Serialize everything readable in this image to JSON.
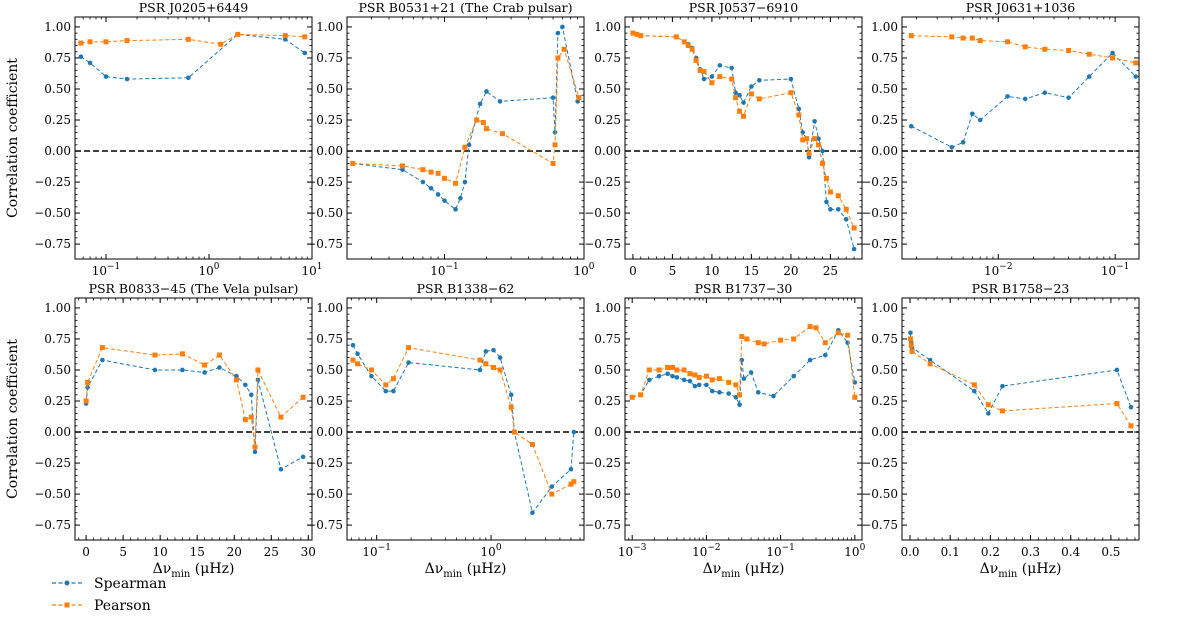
{
  "figure": {
    "legend": {
      "location": "bottom-left",
      "entries": [
        {
          "label": "Spearman",
          "color": "#1f77b4",
          "marker": "circle"
        },
        {
          "label": "Pearson",
          "color": "#ff7f0e",
          "marker": "square"
        }
      ]
    },
    "ylabel": "Correlation coefficient",
    "xlabel": "Δν_min (μHz)",
    "xlabel_main": "Δν",
    "xlabel_sub": "min",
    "xlabel_unit": " (μHz)",
    "zero_line": {
      "y": 0,
      "style": "dashed",
      "color": "#000000"
    }
  },
  "chart_data": [
    {
      "type": "line",
      "title": "PSR J0205+6449",
      "xscale": "log",
      "xlim": [
        0.05,
        10
      ],
      "ylim": [
        -0.87,
        1.08
      ],
      "xticks": [
        0.1,
        1,
        10
      ],
      "xtick_labels": [
        "10^-1",
        "10^0",
        "10^1"
      ],
      "yticks": [
        -0.75,
        -0.5,
        -0.25,
        0,
        0.25,
        0.5,
        0.75,
        1
      ],
      "ytick_labels": [
        "−0.75",
        "−0.50",
        "−0.25",
        "0.00",
        "0.25",
        "0.50",
        "0.75",
        "1.00"
      ],
      "show_ylabel": true,
      "show_xlabel": false,
      "series": [
        {
          "name": "Spearman",
          "x": [
            0.057,
            0.07,
            0.1,
            0.16,
            0.63,
            1.9,
            5.5,
            8.5
          ],
          "y": [
            0.76,
            0.71,
            0.6,
            0.58,
            0.59,
            0.94,
            0.9,
            0.79
          ]
        },
        {
          "name": "Pearson",
          "x": [
            0.057,
            0.07,
            0.1,
            0.16,
            0.63,
            1.3,
            1.9,
            5.5,
            8.5
          ],
          "y": [
            0.87,
            0.88,
            0.88,
            0.89,
            0.9,
            0.86,
            0.94,
            0.93,
            0.92
          ]
        }
      ]
    },
    {
      "type": "line",
      "title": "PSR B0531+21 (The Crab pulsar)",
      "xscale": "log",
      "xlim": [
        0.02,
        1.0
      ],
      "ylim": [
        -0.87,
        1.08
      ],
      "xticks": [
        0.1,
        1
      ],
      "xtick_labels": [
        "10^-1",
        "10^0"
      ],
      "yticks": [
        -0.75,
        -0.5,
        -0.25,
        0,
        0.25,
        0.5,
        0.75,
        1
      ],
      "ytick_labels": [
        "−0.75",
        "−0.50",
        "−0.25",
        "0.00",
        "0.25",
        "0.50",
        "0.75",
        "1.00"
      ],
      "show_ylabel": false,
      "show_xlabel": false,
      "series": [
        {
          "name": "Spearman",
          "x": [
            0.022,
            0.05,
            0.07,
            0.08,
            0.09,
            0.1,
            0.12,
            0.13,
            0.14,
            0.15,
            0.18,
            0.2,
            0.25,
            0.6,
            0.62,
            0.65,
            0.7,
            0.9
          ],
          "y": [
            -0.1,
            -0.15,
            -0.25,
            -0.3,
            -0.35,
            -0.4,
            -0.47,
            -0.38,
            -0.25,
            0.05,
            0.38,
            0.48,
            0.4,
            0.43,
            0.15,
            0.95,
            1.0,
            0.4
          ]
        },
        {
          "name": "Pearson",
          "x": [
            0.022,
            0.05,
            0.07,
            0.08,
            0.09,
            0.1,
            0.12,
            0.14,
            0.17,
            0.19,
            0.2,
            0.26,
            0.6,
            0.62,
            0.65,
            0.72,
            0.92
          ],
          "y": [
            -0.1,
            -0.12,
            -0.15,
            -0.17,
            -0.18,
            -0.22,
            -0.26,
            0.03,
            0.25,
            0.23,
            0.18,
            0.14,
            -0.1,
            0.05,
            0.75,
            0.82,
            0.43
          ]
        }
      ]
    },
    {
      "type": "line",
      "title": "PSR J0537−6910",
      "xscale": "linear",
      "xlim": [
        -1,
        29
      ],
      "ylim": [
        -0.87,
        1.08
      ],
      "xticks": [
        0,
        5,
        10,
        15,
        20,
        25
      ],
      "xtick_labels": [
        "0",
        "5",
        "10",
        "15",
        "20",
        "25"
      ],
      "yticks": [
        -0.75,
        -0.5,
        -0.25,
        0,
        0.25,
        0.5,
        0.75,
        1
      ],
      "ytick_labels": [
        "−0.75",
        "−0.50",
        "−0.25",
        "0.00",
        "0.25",
        "0.50",
        "0.75",
        "1.00"
      ],
      "show_ylabel": false,
      "show_xlabel": false,
      "series": [
        {
          "name": "Spearman",
          "x": [
            0,
            0.5,
            1,
            5.5,
            6.5,
            7,
            7.5,
            8,
            8.5,
            9,
            10,
            11,
            12.5,
            13,
            13.5,
            14,
            15,
            16,
            20,
            21,
            21.5,
            22,
            22.3,
            23,
            23.5,
            24,
            24.5,
            25,
            26,
            27,
            28
          ],
          "y": [
            0.95,
            0.94,
            0.93,
            0.92,
            0.88,
            0.86,
            0.83,
            0.75,
            0.66,
            0.58,
            0.6,
            0.69,
            0.67,
            0.47,
            0.45,
            0.39,
            0.52,
            0.57,
            0.58,
            0.34,
            0.15,
            0.1,
            -0.05,
            0.24,
            0.1,
            0.0,
            -0.41,
            -0.47,
            -0.47,
            -0.55,
            -0.79
          ]
        },
        {
          "name": "Pearson",
          "x": [
            0,
            0.5,
            1,
            5.5,
            6.5,
            7,
            7.5,
            8,
            8.5,
            9,
            10,
            11,
            12.5,
            13,
            13.5,
            14,
            15,
            16,
            20,
            21,
            21.5,
            22,
            22.3,
            23,
            23.5,
            24,
            24.5,
            25,
            26,
            27,
            28
          ],
          "y": [
            0.95,
            0.94,
            0.93,
            0.92,
            0.88,
            0.85,
            0.82,
            0.73,
            0.65,
            0.64,
            0.55,
            0.6,
            0.58,
            0.43,
            0.32,
            0.28,
            0.46,
            0.42,
            0.47,
            0.29,
            0.09,
            0.1,
            -0.02,
            0.1,
            0.05,
            -0.1,
            -0.22,
            -0.33,
            -0.36,
            -0.47,
            -0.62
          ]
        }
      ]
    },
    {
      "type": "line",
      "title": "PSR J0631+1036",
      "xscale": "log",
      "xlim": [
        0.0015,
        0.16
      ],
      "ylim": [
        -0.87,
        1.08
      ],
      "xticks": [
        0.01,
        0.1
      ],
      "xtick_labels": [
        "10^-2",
        "10^-1"
      ],
      "yticks": [
        -0.75,
        -0.5,
        -0.25,
        0,
        0.25,
        0.5,
        0.75,
        1
      ],
      "ytick_labels": [
        "−0.75",
        "−0.50",
        "−0.25",
        "0.00",
        "0.25",
        "0.50",
        "0.75",
        "1.00"
      ],
      "show_ylabel": false,
      "show_xlabel": false,
      "series": [
        {
          "name": "Spearman",
          "x": [
            0.0018,
            0.004,
            0.005,
            0.006,
            0.007,
            0.012,
            0.017,
            0.025,
            0.04,
            0.06,
            0.095,
            0.15
          ],
          "y": [
            0.2,
            0.03,
            0.07,
            0.3,
            0.25,
            0.44,
            0.42,
            0.47,
            0.43,
            0.6,
            0.79,
            0.6
          ]
        },
        {
          "name": "Pearson",
          "x": [
            0.0018,
            0.004,
            0.005,
            0.006,
            0.007,
            0.012,
            0.017,
            0.025,
            0.04,
            0.06,
            0.095,
            0.15
          ],
          "y": [
            0.93,
            0.92,
            0.91,
            0.91,
            0.89,
            0.88,
            0.84,
            0.82,
            0.81,
            0.78,
            0.75,
            0.71
          ]
        }
      ]
    },
    {
      "type": "line",
      "title": "PSR B0833−45 (The Vela pulsar)",
      "xscale": "linear",
      "xlim": [
        -1.5,
        30.5
      ],
      "ylim": [
        -0.87,
        1.08
      ],
      "xticks": [
        0,
        5,
        10,
        15,
        20,
        25,
        30
      ],
      "xtick_labels": [
        "0",
        "5",
        "10",
        "15",
        "20",
        "25",
        "30"
      ],
      "yticks": [
        -0.75,
        -0.5,
        -0.25,
        0,
        0.25,
        0.5,
        0.75,
        1
      ],
      "ytick_labels": [
        "−0.75",
        "−0.50",
        "−0.25",
        "0.00",
        "0.25",
        "0.50",
        "0.75",
        "1.00"
      ],
      "show_ylabel": true,
      "show_xlabel": true,
      "series": [
        {
          "name": "Spearman",
          "x": [
            0,
            0.2,
            2.2,
            9.3,
            13,
            16,
            18,
            20.3,
            21.5,
            22.3,
            22.8,
            23.2,
            26.3,
            29.3
          ],
          "y": [
            0.23,
            0.36,
            0.58,
            0.5,
            0.5,
            0.48,
            0.52,
            0.45,
            0.38,
            0.3,
            -0.16,
            0.42,
            -0.3,
            -0.2
          ]
        },
        {
          "name": "Pearson",
          "x": [
            0,
            0.2,
            2.2,
            9.3,
            13,
            16,
            18,
            20.3,
            21.5,
            22.3,
            22.8,
            23.2,
            26.3,
            29.3
          ],
          "y": [
            0.25,
            0.4,
            0.68,
            0.62,
            0.63,
            0.54,
            0.62,
            0.42,
            0.1,
            0.12,
            -0.12,
            0.5,
            0.12,
            0.28
          ]
        }
      ]
    },
    {
      "type": "line",
      "title": "PSR B1338−62",
      "xscale": "log",
      "xlim": [
        0.055,
        6.5
      ],
      "ylim": [
        -0.87,
        1.08
      ],
      "xticks": [
        0.1,
        1
      ],
      "xtick_labels": [
        "10^-1",
        "10^0"
      ],
      "yticks": [
        -0.75,
        -0.5,
        -0.25,
        0,
        0.25,
        0.5,
        0.75,
        1
      ],
      "ytick_labels": [
        "−0.75",
        "−0.50",
        "−0.25",
        "0.00",
        "0.25",
        "0.50",
        "0.75",
        "1.00"
      ],
      "show_ylabel": false,
      "show_xlabel": true,
      "series": [
        {
          "name": "Spearman",
          "x": [
            0.062,
            0.068,
            0.09,
            0.12,
            0.14,
            0.19,
            0.8,
            0.9,
            1.05,
            1.2,
            1.5,
            1.6,
            2.3,
            3.4,
            5.0,
            5.3
          ],
          "y": [
            0.7,
            0.63,
            0.45,
            0.33,
            0.33,
            0.56,
            0.5,
            0.65,
            0.66,
            0.6,
            0.3,
            0.0,
            -0.65,
            -0.44,
            -0.3,
            0.0
          ]
        },
        {
          "name": "Pearson",
          "x": [
            0.062,
            0.068,
            0.09,
            0.12,
            0.14,
            0.19,
            0.8,
            0.9,
            1.05,
            1.2,
            1.5,
            1.6,
            2.3,
            3.4,
            5.0,
            5.3
          ],
          "y": [
            0.58,
            0.55,
            0.5,
            0.38,
            0.43,
            0.68,
            0.58,
            0.55,
            0.52,
            0.5,
            0.2,
            0.0,
            -0.1,
            -0.5,
            -0.42,
            -0.4
          ]
        }
      ]
    },
    {
      "type": "line",
      "title": "PSR B1737−30",
      "xscale": "log",
      "xlim": [
        0.0008,
        1.25
      ],
      "ylim": [
        -0.87,
        1.08
      ],
      "xticks": [
        0.001,
        0.01,
        0.1,
        1
      ],
      "xtick_labels": [
        "10^-3",
        "10^-2",
        "10^-1",
        "10^0"
      ],
      "yticks": [
        -0.75,
        -0.5,
        -0.25,
        0,
        0.25,
        0.5,
        0.75,
        1
      ],
      "ytick_labels": [
        "−0.75",
        "−0.50",
        "−0.25",
        "0.00",
        "0.25",
        "0.50",
        "0.75",
        "1.00"
      ],
      "show_ylabel": false,
      "show_xlabel": true,
      "series": [
        {
          "name": "Spearman",
          "x": [
            0.001,
            0.0013,
            0.0017,
            0.0023,
            0.003,
            0.0035,
            0.004,
            0.005,
            0.006,
            0.007,
            0.008,
            0.01,
            0.012,
            0.015,
            0.02,
            0.025,
            0.028,
            0.03,
            0.032,
            0.04,
            0.05,
            0.08,
            0.15,
            0.25,
            0.4,
            0.6,
            0.8,
            1.0
          ],
          "y": [
            0.28,
            0.3,
            0.42,
            0.45,
            0.47,
            0.45,
            0.44,
            0.42,
            0.41,
            0.37,
            0.38,
            0.38,
            0.33,
            0.32,
            0.31,
            0.28,
            0.22,
            0.58,
            0.43,
            0.48,
            0.32,
            0.29,
            0.45,
            0.58,
            0.62,
            0.82,
            0.72,
            0.4
          ]
        },
        {
          "name": "Pearson",
          "x": [
            0.001,
            0.0013,
            0.0017,
            0.0023,
            0.003,
            0.0035,
            0.004,
            0.005,
            0.006,
            0.007,
            0.008,
            0.01,
            0.012,
            0.015,
            0.02,
            0.025,
            0.028,
            0.03,
            0.035,
            0.05,
            0.06,
            0.1,
            0.15,
            0.25,
            0.3,
            0.4,
            0.6,
            0.8,
            1.0
          ],
          "y": [
            0.28,
            0.3,
            0.5,
            0.5,
            0.52,
            0.52,
            0.5,
            0.5,
            0.47,
            0.46,
            0.44,
            0.45,
            0.42,
            0.43,
            0.4,
            0.38,
            0.3,
            0.77,
            0.75,
            0.72,
            0.71,
            0.74,
            0.75,
            0.85,
            0.84,
            0.72,
            0.8,
            0.78,
            0.28
          ]
        }
      ]
    },
    {
      "type": "line",
      "title": "PSR B1758−23",
      "xscale": "linear",
      "xlim": [
        -0.02,
        0.57
      ],
      "ylim": [
        -0.87,
        1.08
      ],
      "xticks": [
        0,
        0.1,
        0.2,
        0.3,
        0.4,
        0.5
      ],
      "xtick_labels": [
        "0.0",
        "0.1",
        "0.2",
        "0.3",
        "0.4",
        "0.5"
      ],
      "yticks": [
        -0.75,
        -0.5,
        -0.25,
        0,
        0.25,
        0.5,
        0.75,
        1
      ],
      "ytick_labels": [
        "−0.75",
        "−0.50",
        "−0.25",
        "0.00",
        "0.25",
        "0.50",
        "0.75",
        "1.00"
      ],
      "show_ylabel": false,
      "show_xlabel": true,
      "series": [
        {
          "name": "Spearman",
          "x": [
            0.001,
            0.003,
            0.005,
            0.05,
            0.16,
            0.195,
            0.23,
            0.515,
            0.55
          ],
          "y": [
            0.8,
            0.72,
            0.68,
            0.58,
            0.33,
            0.15,
            0.37,
            0.5,
            0.2
          ]
        },
        {
          "name": "Pearson",
          "x": [
            0.001,
            0.003,
            0.005,
            0.05,
            0.16,
            0.195,
            0.23,
            0.515,
            0.55
          ],
          "y": [
            0.75,
            0.7,
            0.65,
            0.55,
            0.38,
            0.22,
            0.17,
            0.23,
            0.05
          ]
        }
      ]
    }
  ]
}
